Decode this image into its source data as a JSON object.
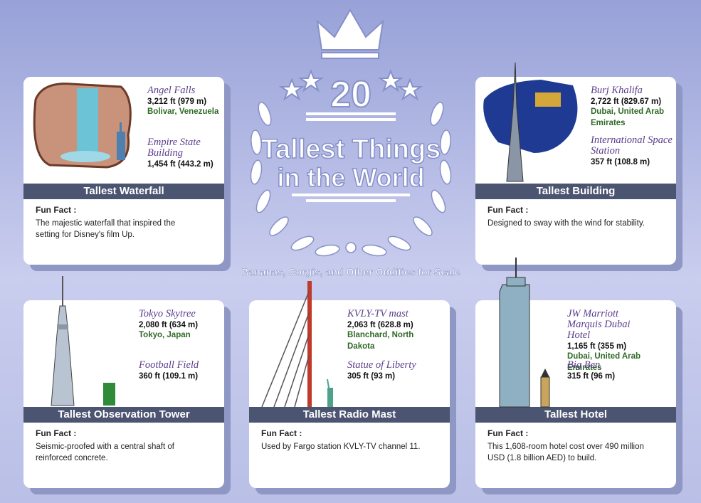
{
  "header": {
    "number": "20",
    "title_line1": "Tallest Things",
    "title_line2": "in the World",
    "subtitle": "Bananas, Corgis, and Other Oddities for Scale"
  },
  "cards": [
    {
      "category": "Tallest Waterfall",
      "fun_fact_label": "Fun Fact :",
      "fun_fact": "The majestic waterfall that inspired the setting for Disney's film Up.",
      "items": [
        {
          "name": "Angel Falls",
          "height": "3,212 ft (979 m)",
          "location": "Bolivar, Venezuela"
        },
        {
          "name": "Empire State Building",
          "height": "1,454 ft (443.2 m)"
        }
      ]
    },
    {
      "category": "Tallest Building",
      "fun_fact_label": "Fun Fact :",
      "fun_fact": "Designed to sway with the wind for stability.",
      "items": [
        {
          "name": "Burj Khalifa",
          "height": "2,722 ft (829.67 m)",
          "location": "Dubai, United Arab Emirates"
        },
        {
          "name": "International Space Station",
          "height": "357 ft (108.8 m)"
        }
      ]
    },
    {
      "category": "Tallest Observation Tower",
      "fun_fact_label": "Fun Fact :",
      "fun_fact": "Seismic-proofed with a central shaft of reinforced concrete.",
      "items": [
        {
          "name": "Tokyo Skytree",
          "height": "2,080 ft (634 m)",
          "location": "Tokyo, Japan"
        },
        {
          "name": "Football Field",
          "height": "360 ft (109.1 m)"
        }
      ]
    },
    {
      "category": "Tallest Radio Mast",
      "fun_fact_label": "Fun Fact :",
      "fun_fact": "Used by Fargo station KVLY-TV channel 11.",
      "items": [
        {
          "name": "KVLY-TV mast",
          "height": "2,063 ft (628.8 m)",
          "location": "Blanchard, North Dakota"
        },
        {
          "name": "Statue of Liberty",
          "height": "305 ft (93 m)"
        }
      ]
    },
    {
      "category": "Tallest Hotel",
      "fun_fact_label": "Fun Fact :",
      "fun_fact": "This 1,608-room hotel cost over 490 million USD (1.8 billion AED) to build.",
      "items": [
        {
          "name": "JW Marriott Marquis Dubai Hotel",
          "height": "1,165 ft (355 m)",
          "location": "Dubai, United Arab Emirates"
        },
        {
          "name": "Big Ben",
          "height": "315 ft (96 m)"
        }
      ]
    }
  ]
}
